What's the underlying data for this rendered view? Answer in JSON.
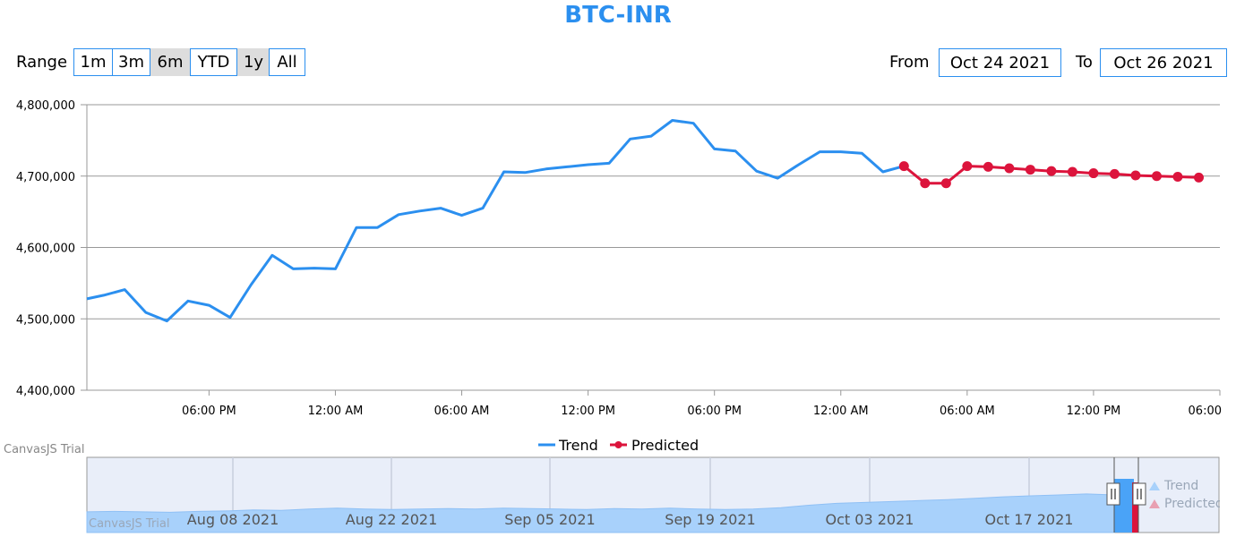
{
  "title": "BTC-INR",
  "range_selector": {
    "label": "Range",
    "buttons": [
      "1m",
      "3m",
      "6m",
      "YTD",
      "1y",
      "All"
    ],
    "active": [
      "6m",
      "1y"
    ]
  },
  "input_fields": {
    "from_label": "From",
    "from_value": "Oct 24 2021",
    "to_label": "To",
    "to_value": "Oct 26 2021"
  },
  "watermark": "CanvasJS Trial",
  "colors": {
    "trend": "#2b8fef",
    "predicted": "#dc143c",
    "navigator_fill": "#a8d1fb",
    "navigator_bg": "#e9eef9"
  },
  "chart_data": {
    "type": "line",
    "title": "BTC-INR",
    "x_ticks": [
      "06:00 PM",
      "12:00 AM",
      "06:00 AM",
      "12:00 PM",
      "06:00 PM",
      "12:00 AM",
      "06:00 AM",
      "12:00 PM",
      "06:00"
    ],
    "y_ticks": [
      "4,800,000",
      "4,700,000",
      "4,600,000",
      "4,500,000",
      "4,400,000"
    ],
    "ylim": [
      4400000,
      4800000
    ],
    "x_domain_hours": [
      -5.8,
      48
    ],
    "grid": true,
    "legend_position": "bottom",
    "series": [
      {
        "name": "Trend",
        "hours": [
          -5.8,
          -5,
          -4,
          -3,
          -2,
          -1,
          0,
          1,
          2,
          3,
          4,
          5,
          6,
          7,
          8,
          9,
          10,
          11,
          12,
          13,
          14,
          15,
          16,
          17,
          18,
          19,
          20,
          21,
          22,
          23,
          24,
          25,
          26,
          27,
          28,
          29,
          30,
          31,
          32,
          33
        ],
        "values": [
          4528000,
          4533000,
          4541000,
          4509000,
          4497000,
          4525000,
          4519000,
          4502000,
          4548000,
          4589000,
          4570000,
          4571000,
          4570000,
          4628000,
          4628000,
          4646000,
          4651000,
          4655000,
          4645000,
          4655000,
          4706000,
          4705000,
          4710000,
          4713000,
          4716000,
          4718000,
          4752000,
          4756000,
          4778000,
          4774000,
          4738000,
          4735000,
          4707000,
          4697000,
          4716000,
          4734000,
          4734000,
          4732000,
          4706000,
          4714000
        ]
      },
      {
        "name": "Predicted",
        "hours": [
          33,
          34,
          35,
          36,
          37,
          38,
          39,
          40,
          41,
          42,
          43,
          44,
          45,
          46,
          47
        ],
        "values": [
          4714000,
          4690000,
          4690000,
          4714000,
          4713000,
          4711000,
          4709000,
          4707000,
          4706000,
          4704000,
          4703000,
          4701000,
          4700000,
          4699000,
          4698000
        ]
      }
    ],
    "navigator": {
      "labels": [
        "Aug 08 2021",
        "Aug 22 2021",
        "Sep 05 2021",
        "Sep 19 2021",
        "Oct 03 2021",
        "Oct 17 2021"
      ],
      "legend": [
        "Trend",
        "Predicted"
      ]
    }
  }
}
